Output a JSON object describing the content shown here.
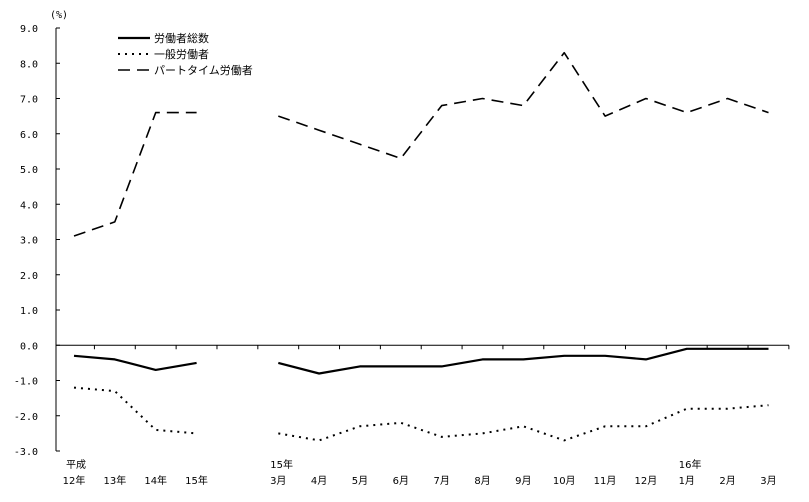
{
  "chart_data": {
    "type": "line",
    "title": "",
    "ylabel": "(%)",
    "ylim": [
      -3.0,
      9.0
    ],
    "yticks": [
      "9.0",
      "8.0",
      "7.0",
      "6.0",
      "5.0",
      "4.0",
      "3.0",
      "2.0",
      "1.0",
      "0.0",
      "-1.0",
      "-2.0",
      "-3.0"
    ],
    "grid": false,
    "legend_position": "top-left",
    "categories": [
      {
        "top": "平成",
        "bottom": "12年"
      },
      {
        "top": "",
        "bottom": "13年"
      },
      {
        "top": "",
        "bottom": "14年"
      },
      {
        "top": "",
        "bottom": "15年"
      },
      {
        "top": "",
        "bottom": ""
      },
      {
        "top": "15年",
        "bottom": "3月"
      },
      {
        "top": "",
        "bottom": "4月"
      },
      {
        "top": "",
        "bottom": "5月"
      },
      {
        "top": "",
        "bottom": "6月"
      },
      {
        "top": "",
        "bottom": "7月"
      },
      {
        "top": "",
        "bottom": "8月"
      },
      {
        "top": "",
        "bottom": "9月"
      },
      {
        "top": "",
        "bottom": "10月"
      },
      {
        "top": "",
        "bottom": "11月"
      },
      {
        "top": "",
        "bottom": "12月"
      },
      {
        "top": "16年",
        "bottom": "1月"
      },
      {
        "top": "",
        "bottom": "2月"
      },
      {
        "top": "",
        "bottom": "3月"
      }
    ],
    "series": [
      {
        "name": "労働者総数",
        "style": "solid",
        "values": [
          -0.3,
          -0.4,
          -0.7,
          -0.5,
          null,
          -0.5,
          -0.8,
          -0.6,
          -0.6,
          -0.6,
          -0.4,
          -0.4,
          -0.3,
          -0.3,
          -0.4,
          -0.1,
          -0.1,
          -0.1
        ]
      },
      {
        "name": "一般労働者",
        "style": "dotted",
        "values": [
          -1.2,
          -1.3,
          -2.4,
          -2.5,
          null,
          -2.5,
          -2.7,
          -2.3,
          -2.2,
          -2.6,
          -2.5,
          -2.3,
          -2.7,
          -2.3,
          -2.3,
          -1.8,
          -1.8,
          -1.7
        ]
      },
      {
        "name": "パートタイム労働者",
        "style": "dashed",
        "values": [
          3.1,
          3.5,
          6.6,
          6.6,
          null,
          6.5,
          6.1,
          5.7,
          5.3,
          6.8,
          7.0,
          6.8,
          8.3,
          6.5,
          7.0,
          6.6,
          7.0,
          6.6
        ]
      }
    ]
  }
}
